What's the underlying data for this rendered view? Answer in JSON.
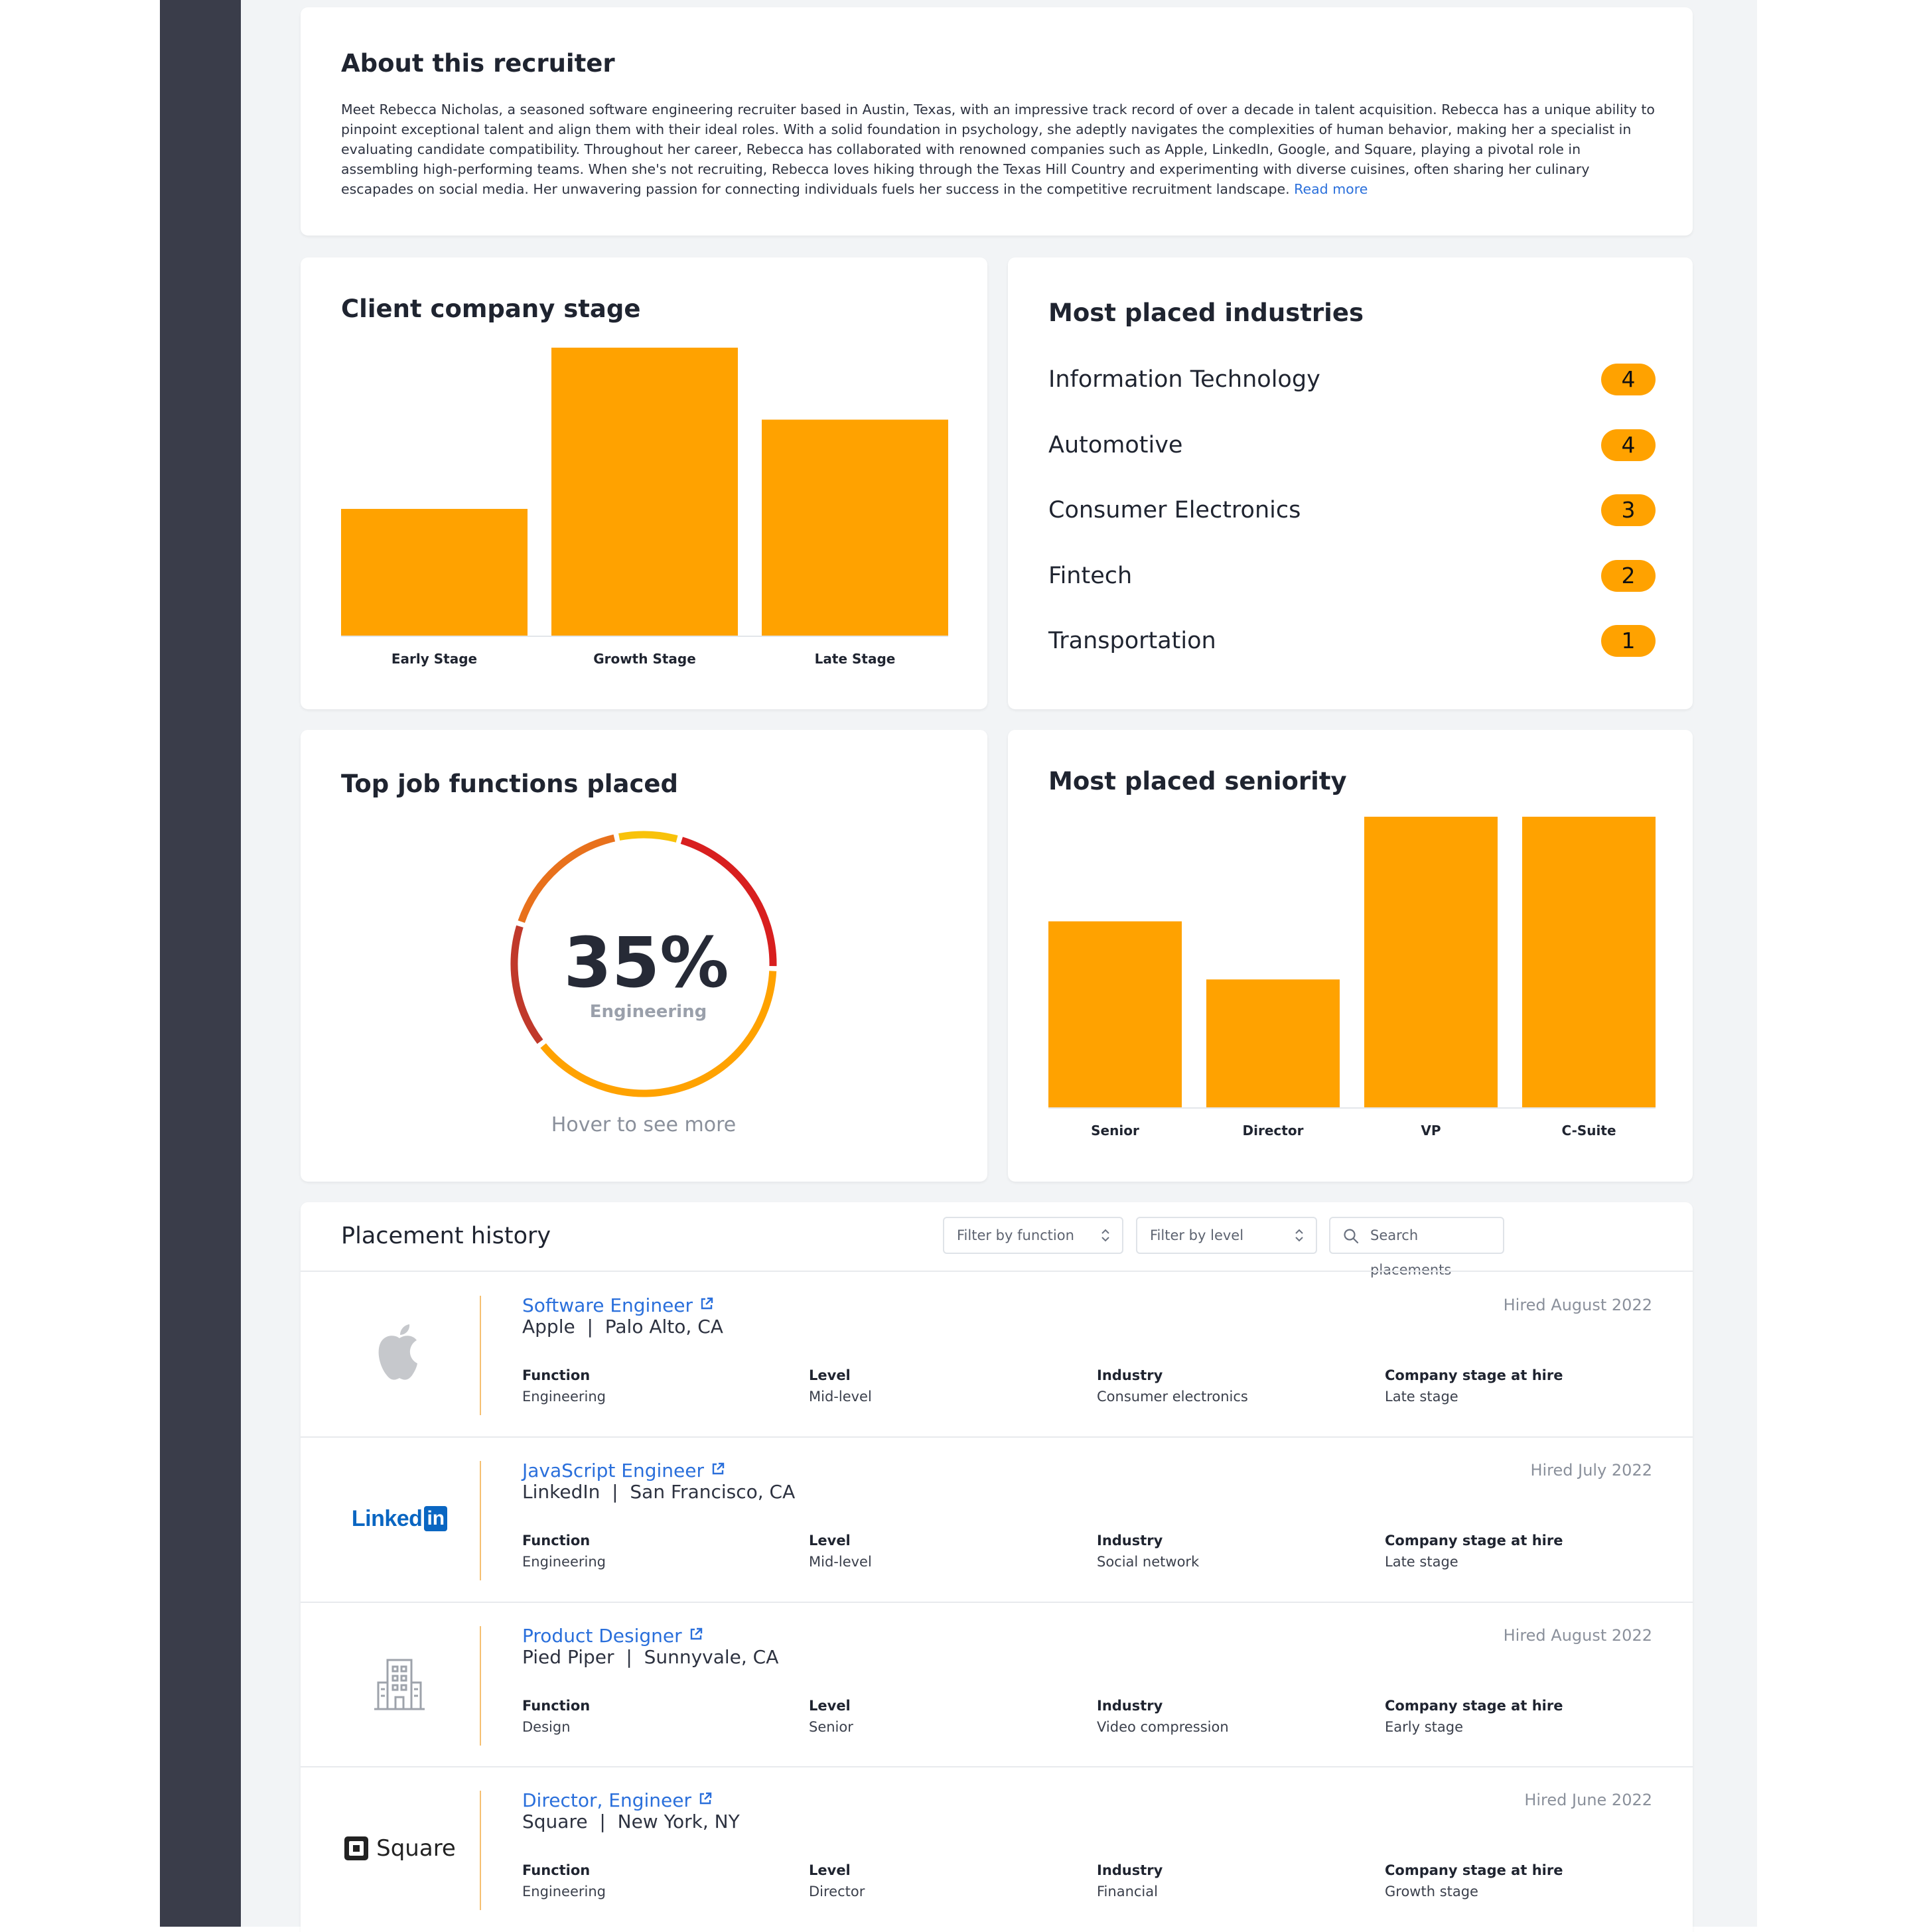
{
  "about": {
    "title": "About this recruiter",
    "bio": "Meet Rebecca Nicholas, a seasoned software engineering recruiter based in Austin, Texas, with an impressive track record of over a decade in talent acquisition. Rebecca has a unique ability to pinpoint exceptional talent and align them with their ideal roles. With a solid foundation in psychology, she adeptly navigates the complexities of human behavior, making her a specialist in evaluating candidate compatibility. Throughout her career, Rebecca has collaborated with renowned companies such as Apple, LinkedIn, Google, and Square, playing a pivotal role in assembling high-performing teams. When she's not recruiting, Rebecca loves hiking through the Texas Hill Country and experimenting with diverse cuisines, often sharing her culinary escapades on social media. Her unwavering passion for connecting individuals fuels her success in the competitive recruitment landscape.",
    "read_more": "Read more"
  },
  "client_stage": {
    "title": "Client company stage",
    "chart_data": {
      "type": "bar",
      "categories": [
        "Early Stage",
        "Growth Stage",
        "Late Stage"
      ],
      "values": [
        4.4,
        10,
        7.5
      ],
      "ylim": [
        0,
        10
      ],
      "grid": false,
      "colors": [
        "#ffa200"
      ]
    }
  },
  "industries": {
    "title": "Most placed industries",
    "items": [
      {
        "name": "Information Technology",
        "count": "4"
      },
      {
        "name": "Automotive",
        "count": "4"
      },
      {
        "name": "Consumer Electronics",
        "count": "3"
      },
      {
        "name": "Fintech",
        "count": "2"
      },
      {
        "name": "Transportation",
        "count": "1"
      }
    ],
    "badge_color": "#ffa200"
  },
  "job_functions": {
    "title": "Top job functions placed",
    "chart_data": {
      "type": "pie",
      "segments": [
        {
          "value": 35,
          "color": "#ffa200"
        },
        {
          "value": 14,
          "color": "#c0392b"
        },
        {
          "value": 15,
          "color": "#e8711c"
        },
        {
          "value": 7,
          "color": "#f8c20a"
        },
        {
          "value": 19,
          "color": "#d81f1f"
        }
      ]
    },
    "center_value": "35%",
    "center_label": "Engineering",
    "hover_hint": "Hover to see more"
  },
  "seniority": {
    "title": "Most placed seniority",
    "chart_data": {
      "type": "bar",
      "categories": [
        "Senior",
        "Director",
        "VP",
        "C-Suite"
      ],
      "values": [
        6.4,
        4.4,
        10,
        10
      ],
      "ylim": [
        0,
        10
      ],
      "grid": false,
      "colors": [
        "#ffa200"
      ]
    }
  },
  "placements": {
    "title": "Placement history",
    "filter_function": "Filter by function",
    "filter_level": "Filter by level",
    "search_placeholder": "Search placements",
    "labels": {
      "function": "Function",
      "level": "Level",
      "industry": "Industry",
      "stage": "Company stage at hire"
    },
    "rows": [
      {
        "logo": "apple-logo",
        "title": "Software Engineer",
        "company": "Apple",
        "location": "Palo Alto, CA",
        "hired": "Hired August 2022",
        "function": "Engineering",
        "level": "Mid-level",
        "industry": "Consumer electronics",
        "stage": "Late stage"
      },
      {
        "logo": "linkedin-logo",
        "title": "JavaScript Engineer",
        "company": "LinkedIn",
        "location": "San Francisco, CA",
        "hired": "Hired July 2022",
        "function": "Engineering",
        "level": "Mid-level",
        "industry": "Social network",
        "stage": "Late stage"
      },
      {
        "logo": "building-icon",
        "title": "Product Designer",
        "company": "Pied Piper",
        "location": "Sunnyvale, CA",
        "hired": "Hired August 2022",
        "function": "Design",
        "level": "Senior",
        "industry": "Video compression",
        "stage": "Early stage"
      },
      {
        "logo": "square-logo",
        "title": "Director, Engineer",
        "company": "Square",
        "location": "New York, NY",
        "hired": "Hired June 2022",
        "function": "Engineering",
        "level": "Director",
        "industry": "Financial",
        "stage": "Growth stage"
      }
    ],
    "logo_text": {
      "linkedin_word": "Linked",
      "linkedin_in": "in",
      "square_word": "Square"
    }
  }
}
